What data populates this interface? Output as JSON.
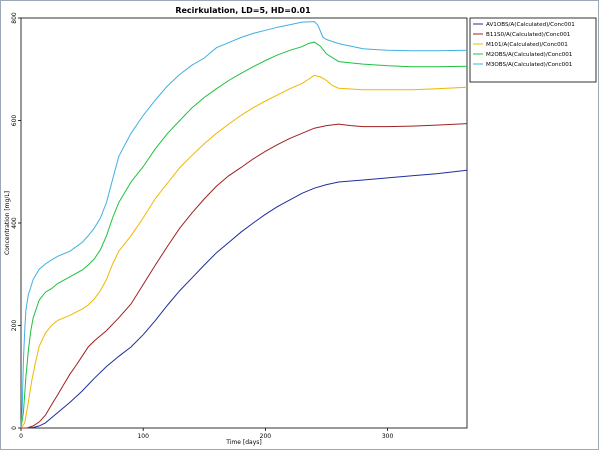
{
  "chart_data": {
    "type": "line",
    "title": "Recirkulation, LD=5, HD=0.01",
    "xlabel": "Time  [days]",
    "ylabel": "Concentration [mg/L]",
    "xlim": [
      0,
      365
    ],
    "ylim": [
      0,
      800
    ],
    "xticks": [
      0,
      100,
      200,
      300
    ],
    "yticks": [
      0,
      200,
      400,
      600,
      800
    ],
    "grid": false,
    "legend_position": "top-right",
    "series": [
      {
        "name": "AV1OBS/A(Calculated)/Conc001",
        "color": "#1f2f9a",
        "points": [
          [
            0,
            0
          ],
          [
            5,
            0
          ],
          [
            10,
            1
          ],
          [
            15,
            4
          ],
          [
            20,
            10
          ],
          [
            25,
            20
          ],
          [
            30,
            30
          ],
          [
            40,
            50
          ],
          [
            50,
            72
          ],
          [
            60,
            97
          ],
          [
            70,
            120
          ],
          [
            80,
            140
          ],
          [
            90,
            158
          ],
          [
            100,
            182
          ],
          [
            110,
            210
          ],
          [
            120,
            240
          ],
          [
            130,
            268
          ],
          [
            140,
            293
          ],
          [
            150,
            318
          ],
          [
            160,
            342
          ],
          [
            170,
            362
          ],
          [
            180,
            382
          ],
          [
            190,
            400
          ],
          [
            200,
            417
          ],
          [
            210,
            432
          ],
          [
            220,
            445
          ],
          [
            230,
            458
          ],
          [
            240,
            468
          ],
          [
            250,
            475
          ],
          [
            260,
            480
          ],
          [
            280,
            484
          ],
          [
            300,
            488
          ],
          [
            320,
            492
          ],
          [
            340,
            496
          ],
          [
            365,
            503
          ]
        ]
      },
      {
        "name": "B11S0/A(Calculated)/Conc001",
        "color": "#a02020",
        "points": [
          [
            0,
            0
          ],
          [
            5,
            0
          ],
          [
            10,
            4
          ],
          [
            15,
            12
          ],
          [
            20,
            25
          ],
          [
            25,
            45
          ],
          [
            30,
            65
          ],
          [
            35,
            85
          ],
          [
            40,
            105
          ],
          [
            45,
            122
          ],
          [
            50,
            140
          ],
          [
            55,
            158
          ],
          [
            60,
            170
          ],
          [
            70,
            190
          ],
          [
            80,
            215
          ],
          [
            90,
            242
          ],
          [
            100,
            280
          ],
          [
            110,
            318
          ],
          [
            120,
            355
          ],
          [
            130,
            390
          ],
          [
            140,
            420
          ],
          [
            150,
            447
          ],
          [
            160,
            472
          ],
          [
            170,
            492
          ],
          [
            180,
            508
          ],
          [
            190,
            525
          ],
          [
            200,
            540
          ],
          [
            210,
            553
          ],
          [
            220,
            565
          ],
          [
            230,
            575
          ],
          [
            240,
            585
          ],
          [
            250,
            590
          ],
          [
            260,
            593
          ],
          [
            270,
            590
          ],
          [
            280,
            588
          ],
          [
            300,
            588
          ],
          [
            320,
            589
          ],
          [
            340,
            591
          ],
          [
            365,
            594
          ]
        ]
      },
      {
        "name": "M101/A(Calculated)/Conc001",
        "color": "#f0b800",
        "points": [
          [
            0,
            0
          ],
          [
            3,
            10
          ],
          [
            6,
            50
          ],
          [
            9,
            95
          ],
          [
            12,
            130
          ],
          [
            15,
            160
          ],
          [
            20,
            185
          ],
          [
            25,
            200
          ],
          [
            30,
            210
          ],
          [
            40,
            220
          ],
          [
            50,
            232
          ],
          [
            55,
            240
          ],
          [
            60,
            252
          ],
          [
            65,
            268
          ],
          [
            70,
            290
          ],
          [
            75,
            320
          ],
          [
            80,
            345
          ],
          [
            90,
            375
          ],
          [
            100,
            410
          ],
          [
            110,
            448
          ],
          [
            120,
            478
          ],
          [
            130,
            508
          ],
          [
            140,
            532
          ],
          [
            150,
            555
          ],
          [
            160,
            575
          ],
          [
            170,
            593
          ],
          [
            180,
            610
          ],
          [
            190,
            625
          ],
          [
            200,
            638
          ],
          [
            210,
            650
          ],
          [
            220,
            662
          ],
          [
            230,
            672
          ],
          [
            235,
            680
          ],
          [
            240,
            688
          ],
          [
            245,
            685
          ],
          [
            250,
            678
          ],
          [
            255,
            668
          ],
          [
            260,
            663
          ],
          [
            280,
            660
          ],
          [
            300,
            660
          ],
          [
            320,
            660
          ],
          [
            340,
            662
          ],
          [
            365,
            665
          ]
        ]
      },
      {
        "name": "M2OBS/A(Calculated)/Conc001",
        "color": "#20c040",
        "points": [
          [
            0,
            0
          ],
          [
            2,
            30
          ],
          [
            4,
            100
          ],
          [
            6,
            150
          ],
          [
            8,
            190
          ],
          [
            10,
            215
          ],
          [
            15,
            250
          ],
          [
            20,
            265
          ],
          [
            25,
            272
          ],
          [
            30,
            282
          ],
          [
            40,
            295
          ],
          [
            50,
            308
          ],
          [
            55,
            318
          ],
          [
            60,
            330
          ],
          [
            65,
            348
          ],
          [
            70,
            375
          ],
          [
            75,
            410
          ],
          [
            80,
            440
          ],
          [
            90,
            480
          ],
          [
            100,
            510
          ],
          [
            110,
            545
          ],
          [
            120,
            575
          ],
          [
            130,
            600
          ],
          [
            140,
            625
          ],
          [
            150,
            645
          ],
          [
            160,
            662
          ],
          [
            170,
            678
          ],
          [
            180,
            692
          ],
          [
            190,
            705
          ],
          [
            200,
            717
          ],
          [
            210,
            728
          ],
          [
            220,
            737
          ],
          [
            230,
            744
          ],
          [
            235,
            750
          ],
          [
            240,
            753
          ],
          [
            245,
            745
          ],
          [
            250,
            730
          ],
          [
            260,
            715
          ],
          [
            280,
            710
          ],
          [
            300,
            707
          ],
          [
            320,
            705
          ],
          [
            340,
            705
          ],
          [
            365,
            706
          ]
        ]
      },
      {
        "name": "M3OBS/A(Calculated)/Conc001",
        "color": "#40b0e0",
        "points": [
          [
            0,
            0
          ],
          [
            1,
            40
          ],
          [
            2,
            130
          ],
          [
            3,
            190
          ],
          [
            4,
            230
          ],
          [
            6,
            260
          ],
          [
            8,
            275
          ],
          [
            10,
            290
          ],
          [
            15,
            310
          ],
          [
            20,
            320
          ],
          [
            25,
            328
          ],
          [
            30,
            335
          ],
          [
            40,
            345
          ],
          [
            50,
            362
          ],
          [
            55,
            375
          ],
          [
            60,
            390
          ],
          [
            65,
            410
          ],
          [
            70,
            440
          ],
          [
            75,
            485
          ],
          [
            80,
            530
          ],
          [
            90,
            575
          ],
          [
            100,
            610
          ],
          [
            110,
            640
          ],
          [
            120,
            668
          ],
          [
            130,
            690
          ],
          [
            140,
            708
          ],
          [
            150,
            722
          ],
          [
            155,
            732
          ],
          [
            160,
            742
          ],
          [
            170,
            752
          ],
          [
            180,
            762
          ],
          [
            190,
            770
          ],
          [
            200,
            776
          ],
          [
            210,
            782
          ],
          [
            220,
            787
          ],
          [
            230,
            792
          ],
          [
            240,
            793
          ],
          [
            243,
            786
          ],
          [
            247,
            763
          ],
          [
            250,
            758
          ],
          [
            260,
            750
          ],
          [
            280,
            740
          ],
          [
            300,
            737
          ],
          [
            320,
            736
          ],
          [
            340,
            736
          ],
          [
            365,
            737
          ]
        ]
      }
    ]
  }
}
